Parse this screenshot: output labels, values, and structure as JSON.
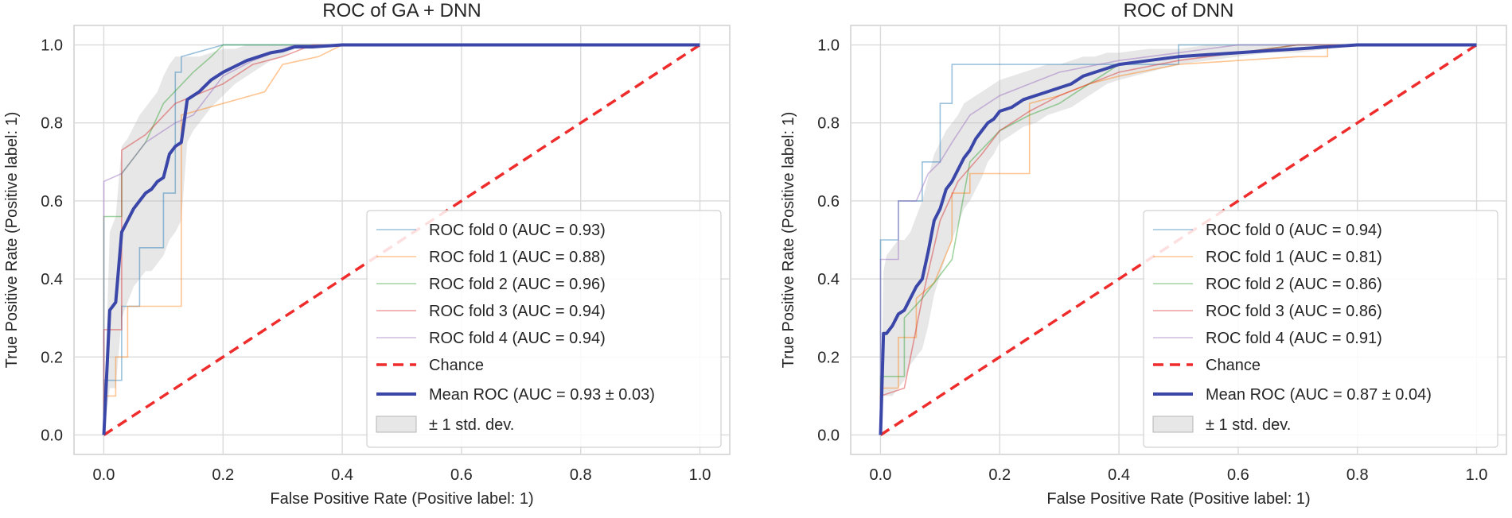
{
  "colors": {
    "fold0": "#1f77b4",
    "fold1": "#ff7f0e",
    "fold2": "#2ca02c",
    "fold3": "#d62728",
    "fold4": "#9467bd",
    "chance": "#ee2c2c",
    "mean": "#3a46a8",
    "band": "#bbbbbb"
  },
  "chart_data": [
    {
      "type": "line",
      "title": "ROC of GA + DNN",
      "xlabel": "False Positive Rate (Positive label: 1)",
      "ylabel": "True Positive Rate (Positive label: 1)",
      "xlim": [
        -0.05,
        1.05
      ],
      "ylim": [
        -0.05,
        1.05
      ],
      "xticks": [
        "0.0",
        "0.2",
        "0.4",
        "0.6",
        "0.8",
        "1.0"
      ],
      "yticks": [
        "0.0",
        "0.2",
        "0.4",
        "0.6",
        "0.8",
        "1.0"
      ],
      "series": [
        {
          "name": "ROC fold 0 (AUC = 0.93)",
          "color_key": "fold0",
          "x": [
            0,
            0,
            0.03,
            0.03,
            0.06,
            0.06,
            0.1,
            0.1,
            0.12,
            0.12,
            0.13,
            0.13,
            0.2,
            0.3,
            1.0
          ],
          "y": [
            0,
            0.14,
            0.14,
            0.33,
            0.33,
            0.48,
            0.48,
            0.62,
            0.62,
            0.93,
            0.93,
            0.97,
            1.0,
            1.0,
            1.0
          ]
        },
        {
          "name": "ROC fold 1 (AUC = 0.88)",
          "color_key": "fold1",
          "x": [
            0,
            0,
            0.02,
            0.02,
            0.04,
            0.04,
            0.07,
            0.13,
            0.13,
            0.2,
            0.27,
            0.3,
            0.36,
            0.4,
            1.0
          ],
          "y": [
            0,
            0.1,
            0.1,
            0.2,
            0.2,
            0.33,
            0.33,
            0.33,
            0.82,
            0.85,
            0.88,
            0.95,
            0.97,
            1.0,
            1.0
          ]
        },
        {
          "name": "ROC fold 2 (AUC = 0.96)",
          "color_key": "fold2",
          "x": [
            0,
            0,
            0.03,
            0.03,
            0.07,
            0.1,
            0.15,
            0.18,
            0.2,
            0.3,
            1.0
          ],
          "y": [
            0,
            0.56,
            0.56,
            0.67,
            0.75,
            0.85,
            0.93,
            0.97,
            1.0,
            1.0,
            1.0
          ]
        },
        {
          "name": "ROC fold 3 (AUC = 0.94)",
          "color_key": "fold3",
          "x": [
            0,
            0,
            0.03,
            0.03,
            0.07,
            0.12,
            0.2,
            0.25,
            0.3,
            0.35,
            1.0
          ],
          "y": [
            0,
            0.27,
            0.27,
            0.73,
            0.77,
            0.85,
            0.9,
            0.95,
            0.97,
            1.0,
            1.0
          ]
        },
        {
          "name": "ROC fold 4 (AUC = 0.94)",
          "color_key": "fold4",
          "x": [
            0,
            0,
            0.03,
            0.07,
            0.12,
            0.15,
            0.2,
            0.25,
            0.32,
            1.0
          ],
          "y": [
            0,
            0.65,
            0.67,
            0.75,
            0.8,
            0.82,
            0.92,
            0.96,
            1.0,
            1.0
          ]
        }
      ],
      "chance": {
        "name": "Chance",
        "color_key": "chance",
        "x": [
          0,
          1
        ],
        "y": [
          0,
          1
        ]
      },
      "mean": {
        "name": "Mean ROC (AUC = 0.93 ± 0.03)",
        "color_key": "mean",
        "x": [
          0,
          0.01,
          0.02,
          0.03,
          0.04,
          0.05,
          0.06,
          0.07,
          0.08,
          0.09,
          0.1,
          0.11,
          0.12,
          0.13,
          0.14,
          0.15,
          0.16,
          0.18,
          0.2,
          0.22,
          0.24,
          0.26,
          0.28,
          0.3,
          0.32,
          0.35,
          0.4,
          0.5,
          0.6,
          0.8,
          1.0
        ],
        "y": [
          0,
          0.32,
          0.34,
          0.52,
          0.55,
          0.58,
          0.6,
          0.62,
          0.63,
          0.65,
          0.66,
          0.72,
          0.74,
          0.75,
          0.86,
          0.87,
          0.88,
          0.91,
          0.93,
          0.945,
          0.96,
          0.97,
          0.98,
          0.985,
          0.995,
          0.995,
          1.0,
          1.0,
          1.0,
          1.0,
          1.0
        ]
      },
      "band": {
        "name": "± 1 std. dev.",
        "color_key": "band",
        "x": [
          0,
          0.01,
          0.02,
          0.03,
          0.04,
          0.05,
          0.06,
          0.07,
          0.08,
          0.09,
          0.1,
          0.11,
          0.12,
          0.13,
          0.14,
          0.15,
          0.16,
          0.18,
          0.2,
          0.22,
          0.24,
          0.26,
          0.28,
          0.3,
          0.32,
          0.35,
          0.4,
          0.5,
          0.6,
          0.8,
          1.0
        ],
        "upper": [
          0.02,
          0.52,
          0.56,
          0.74,
          0.76,
          0.79,
          0.82,
          0.84,
          0.86,
          0.88,
          0.92,
          0.95,
          0.97,
          0.97,
          0.97,
          0.97,
          0.97,
          0.98,
          0.99,
          0.99,
          1.0,
          1.0,
          1.0,
          1.0,
          1.0,
          1.0,
          1.0,
          1.0,
          1.0,
          1.0,
          1.0
        ],
        "lower": [
          0,
          0.12,
          0.12,
          0.3,
          0.34,
          0.38,
          0.4,
          0.42,
          0.42,
          0.44,
          0.46,
          0.5,
          0.52,
          0.55,
          0.75,
          0.78,
          0.8,
          0.84,
          0.87,
          0.9,
          0.92,
          0.94,
          0.96,
          0.97,
          0.99,
          0.99,
          1.0,
          1.0,
          1.0,
          1.0,
          1.0
        ]
      },
      "legend_position": "lower-right"
    },
    {
      "type": "line",
      "title": "ROC of DNN",
      "xlabel": "False Positive Rate (Positive label: 1)",
      "ylabel": "True Positive Rate (Positive label: 1)",
      "xlim": [
        -0.05,
        1.05
      ],
      "ylim": [
        -0.05,
        1.05
      ],
      "xticks": [
        "0.0",
        "0.2",
        "0.4",
        "0.6",
        "0.8",
        "1.0"
      ],
      "yticks": [
        "0.0",
        "0.2",
        "0.4",
        "0.6",
        "0.8",
        "1.0"
      ],
      "series": [
        {
          "name": "ROC fold 0 (AUC = 0.94)",
          "color_key": "fold0",
          "x": [
            0,
            0,
            0.03,
            0.03,
            0.07,
            0.07,
            0.1,
            0.1,
            0.12,
            0.12,
            0.14,
            0.14,
            0.2,
            0.5,
            0.5,
            1.0
          ],
          "y": [
            0,
            0.5,
            0.5,
            0.6,
            0.6,
            0.7,
            0.7,
            0.85,
            0.85,
            0.95,
            0.95,
            0.95,
            0.95,
            0.95,
            1.0,
            1.0
          ]
        },
        {
          "name": "ROC fold 1 (AUC = 0.81)",
          "color_key": "fold1",
          "x": [
            0,
            0,
            0.03,
            0.03,
            0.06,
            0.06,
            0.09,
            0.12,
            0.12,
            0.15,
            0.15,
            0.25,
            0.25,
            0.3,
            0.35,
            0.4,
            0.5,
            0.6,
            0.7,
            0.75,
            0.75,
            1.0
          ],
          "y": [
            0,
            0.12,
            0.12,
            0.25,
            0.25,
            0.35,
            0.39,
            0.5,
            0.62,
            0.62,
            0.67,
            0.67,
            0.85,
            0.87,
            0.9,
            0.92,
            0.95,
            0.96,
            0.97,
            0.97,
            1.0,
            1.0
          ]
        },
        {
          "name": "ROC fold 2 (AUC = 0.86)",
          "color_key": "fold2",
          "x": [
            0,
            0,
            0.04,
            0.04,
            0.07,
            0.09,
            0.12,
            0.15,
            0.2,
            0.25,
            0.3,
            0.35,
            0.4,
            0.5,
            0.6,
            0.7,
            1.0
          ],
          "y": [
            0,
            0.15,
            0.15,
            0.3,
            0.35,
            0.39,
            0.45,
            0.7,
            0.78,
            0.82,
            0.85,
            0.9,
            0.95,
            0.97,
            0.98,
            1.0,
            1.0
          ]
        },
        {
          "name": "ROC fold 3 (AUC = 0.86)",
          "color_key": "fold3",
          "x": [
            0,
            0,
            0.04,
            0.07,
            0.1,
            0.13,
            0.17,
            0.2,
            0.25,
            0.3,
            0.35,
            0.4,
            0.5,
            0.6,
            0.7,
            1.0
          ],
          "y": [
            0,
            0.1,
            0.12,
            0.35,
            0.55,
            0.65,
            0.72,
            0.78,
            0.83,
            0.87,
            0.9,
            0.93,
            0.96,
            0.98,
            1.0,
            1.0
          ]
        },
        {
          "name": "ROC fold 4 (AUC = 0.91)",
          "color_key": "fold4",
          "x": [
            0,
            0,
            0.03,
            0.03,
            0.06,
            0.08,
            0.1,
            0.12,
            0.15,
            0.2,
            0.25,
            0.3,
            0.4,
            0.5,
            0.6,
            1.0
          ],
          "y": [
            0,
            0.45,
            0.45,
            0.6,
            0.6,
            0.67,
            0.7,
            0.75,
            0.82,
            0.87,
            0.9,
            0.93,
            0.96,
            0.98,
            1.0,
            1.0
          ]
        }
      ],
      "chance": {
        "name": "Chance",
        "color_key": "chance",
        "x": [
          0,
          1
        ],
        "y": [
          0,
          1
        ]
      },
      "mean": {
        "name": "Mean ROC (AUC = 0.87 ± 0.04)",
        "color_key": "mean",
        "x": [
          0,
          0.005,
          0.01,
          0.02,
          0.03,
          0.04,
          0.05,
          0.06,
          0.07,
          0.08,
          0.09,
          0.1,
          0.11,
          0.12,
          0.13,
          0.14,
          0.15,
          0.16,
          0.17,
          0.18,
          0.19,
          0.2,
          0.22,
          0.24,
          0.26,
          0.28,
          0.3,
          0.32,
          0.34,
          0.36,
          0.38,
          0.4,
          0.45,
          0.5,
          0.55,
          0.6,
          0.65,
          0.7,
          0.75,
          0.8,
          0.9,
          1.0
        ],
        "y": [
          0,
          0.26,
          0.26,
          0.28,
          0.31,
          0.32,
          0.35,
          0.38,
          0.4,
          0.47,
          0.55,
          0.58,
          0.63,
          0.65,
          0.68,
          0.71,
          0.73,
          0.76,
          0.78,
          0.8,
          0.81,
          0.83,
          0.84,
          0.86,
          0.87,
          0.88,
          0.89,
          0.9,
          0.92,
          0.93,
          0.94,
          0.95,
          0.96,
          0.97,
          0.975,
          0.98,
          0.985,
          0.99,
          0.995,
          1.0,
          1.0,
          1.0
        ]
      },
      "band": {
        "name": "± 1 std. dev.",
        "color_key": "band",
        "x": [
          0,
          0.005,
          0.01,
          0.02,
          0.03,
          0.04,
          0.05,
          0.06,
          0.07,
          0.08,
          0.09,
          0.1,
          0.11,
          0.12,
          0.13,
          0.14,
          0.15,
          0.16,
          0.17,
          0.18,
          0.19,
          0.2,
          0.22,
          0.24,
          0.26,
          0.28,
          0.3,
          0.32,
          0.34,
          0.36,
          0.38,
          0.4,
          0.45,
          0.5,
          0.55,
          0.6,
          0.65,
          0.7,
          0.75,
          0.8,
          0.9,
          1.0
        ],
        "upper": [
          0.02,
          0.42,
          0.46,
          0.48,
          0.5,
          0.5,
          0.52,
          0.56,
          0.6,
          0.66,
          0.72,
          0.75,
          0.78,
          0.8,
          0.82,
          0.85,
          0.86,
          0.87,
          0.88,
          0.89,
          0.9,
          0.91,
          0.92,
          0.93,
          0.94,
          0.95,
          0.95,
          0.96,
          0.97,
          0.97,
          0.98,
          0.98,
          0.99,
          0.99,
          1.0,
          1.0,
          1.0,
          1.0,
          1.0,
          1.0,
          1.0,
          1.0
        ],
        "lower": [
          0,
          0.1,
          0.1,
          0.1,
          0.12,
          0.14,
          0.18,
          0.2,
          0.22,
          0.28,
          0.36,
          0.41,
          0.46,
          0.5,
          0.54,
          0.58,
          0.6,
          0.63,
          0.66,
          0.7,
          0.72,
          0.75,
          0.77,
          0.79,
          0.8,
          0.82,
          0.83,
          0.84,
          0.86,
          0.88,
          0.9,
          0.91,
          0.93,
          0.95,
          0.96,
          0.97,
          0.98,
          0.98,
          0.99,
          1.0,
          1.0,
          1.0
        ]
      },
      "legend_position": "lower-right"
    }
  ]
}
